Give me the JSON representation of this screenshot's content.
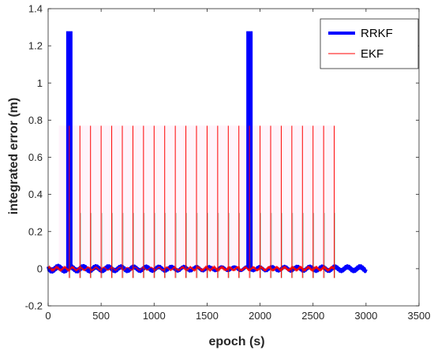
{
  "chart_data": {
    "type": "line",
    "title": "",
    "xlabel": "epoch (s)",
    "ylabel": "integrated error (m)",
    "xlim": [
      0,
      3500
    ],
    "ylim": [
      -0.2,
      1.4
    ],
    "xticks": [
      0,
      500,
      1000,
      1500,
      2000,
      2500,
      3000,
      3500
    ],
    "yticks": [
      -0.2,
      0,
      0.2,
      0.4,
      0.6,
      0.8,
      1,
      1.2,
      1.4
    ],
    "xtick_labels": [
      "0",
      "500",
      "1000",
      "1500",
      "2000",
      "2500",
      "3000",
      "3500"
    ],
    "ytick_labels": [
      "-0.2",
      "0",
      "0.2",
      "0.4",
      "0.6",
      "0.8",
      "1",
      "1.2",
      "1.4"
    ],
    "grid": false,
    "legend_position": "top-right",
    "series": [
      {
        "name": "RRKF",
        "color": "#0000ff",
        "baseline_range": [
          0,
          3000
        ],
        "noise_amplitude": 0.02,
        "spikes": [
          {
            "x": 200,
            "y": 1.27
          },
          {
            "x": 1900,
            "y": 1.27
          }
        ]
      },
      {
        "name": "EKF",
        "color": "#ff0000",
        "baseline_range": [
          0,
          2700
        ],
        "noise_amplitude": 0.015,
        "spike_min": -0.05,
        "spikes": [
          {
            "x": 200,
            "y": 0.77
          },
          {
            "x": 300,
            "y": 0.77
          },
          {
            "x": 400,
            "y": 0.77
          },
          {
            "x": 500,
            "y": 0.77
          },
          {
            "x": 600,
            "y": 0.77
          },
          {
            "x": 700,
            "y": 0.77
          },
          {
            "x": 800,
            "y": 0.77
          },
          {
            "x": 900,
            "y": 0.77
          },
          {
            "x": 1000,
            "y": 0.77
          },
          {
            "x": 1100,
            "y": 0.77
          },
          {
            "x": 1200,
            "y": 0.77
          },
          {
            "x": 1300,
            "y": 0.77
          },
          {
            "x": 1400,
            "y": 0.77
          },
          {
            "x": 1500,
            "y": 0.77
          },
          {
            "x": 1600,
            "y": 0.77
          },
          {
            "x": 1700,
            "y": 0.77
          },
          {
            "x": 1800,
            "y": 0.77
          },
          {
            "x": 1900,
            "y": 0.77
          },
          {
            "x": 2000,
            "y": 0.77
          },
          {
            "x": 2100,
            "y": 0.77
          },
          {
            "x": 2200,
            "y": 0.77
          },
          {
            "x": 2300,
            "y": 0.77
          },
          {
            "x": 2400,
            "y": 0.77
          },
          {
            "x": 2500,
            "y": 0.77
          },
          {
            "x": 2600,
            "y": 0.77
          },
          {
            "x": 2700,
            "y": 0.77
          }
        ]
      }
    ]
  }
}
